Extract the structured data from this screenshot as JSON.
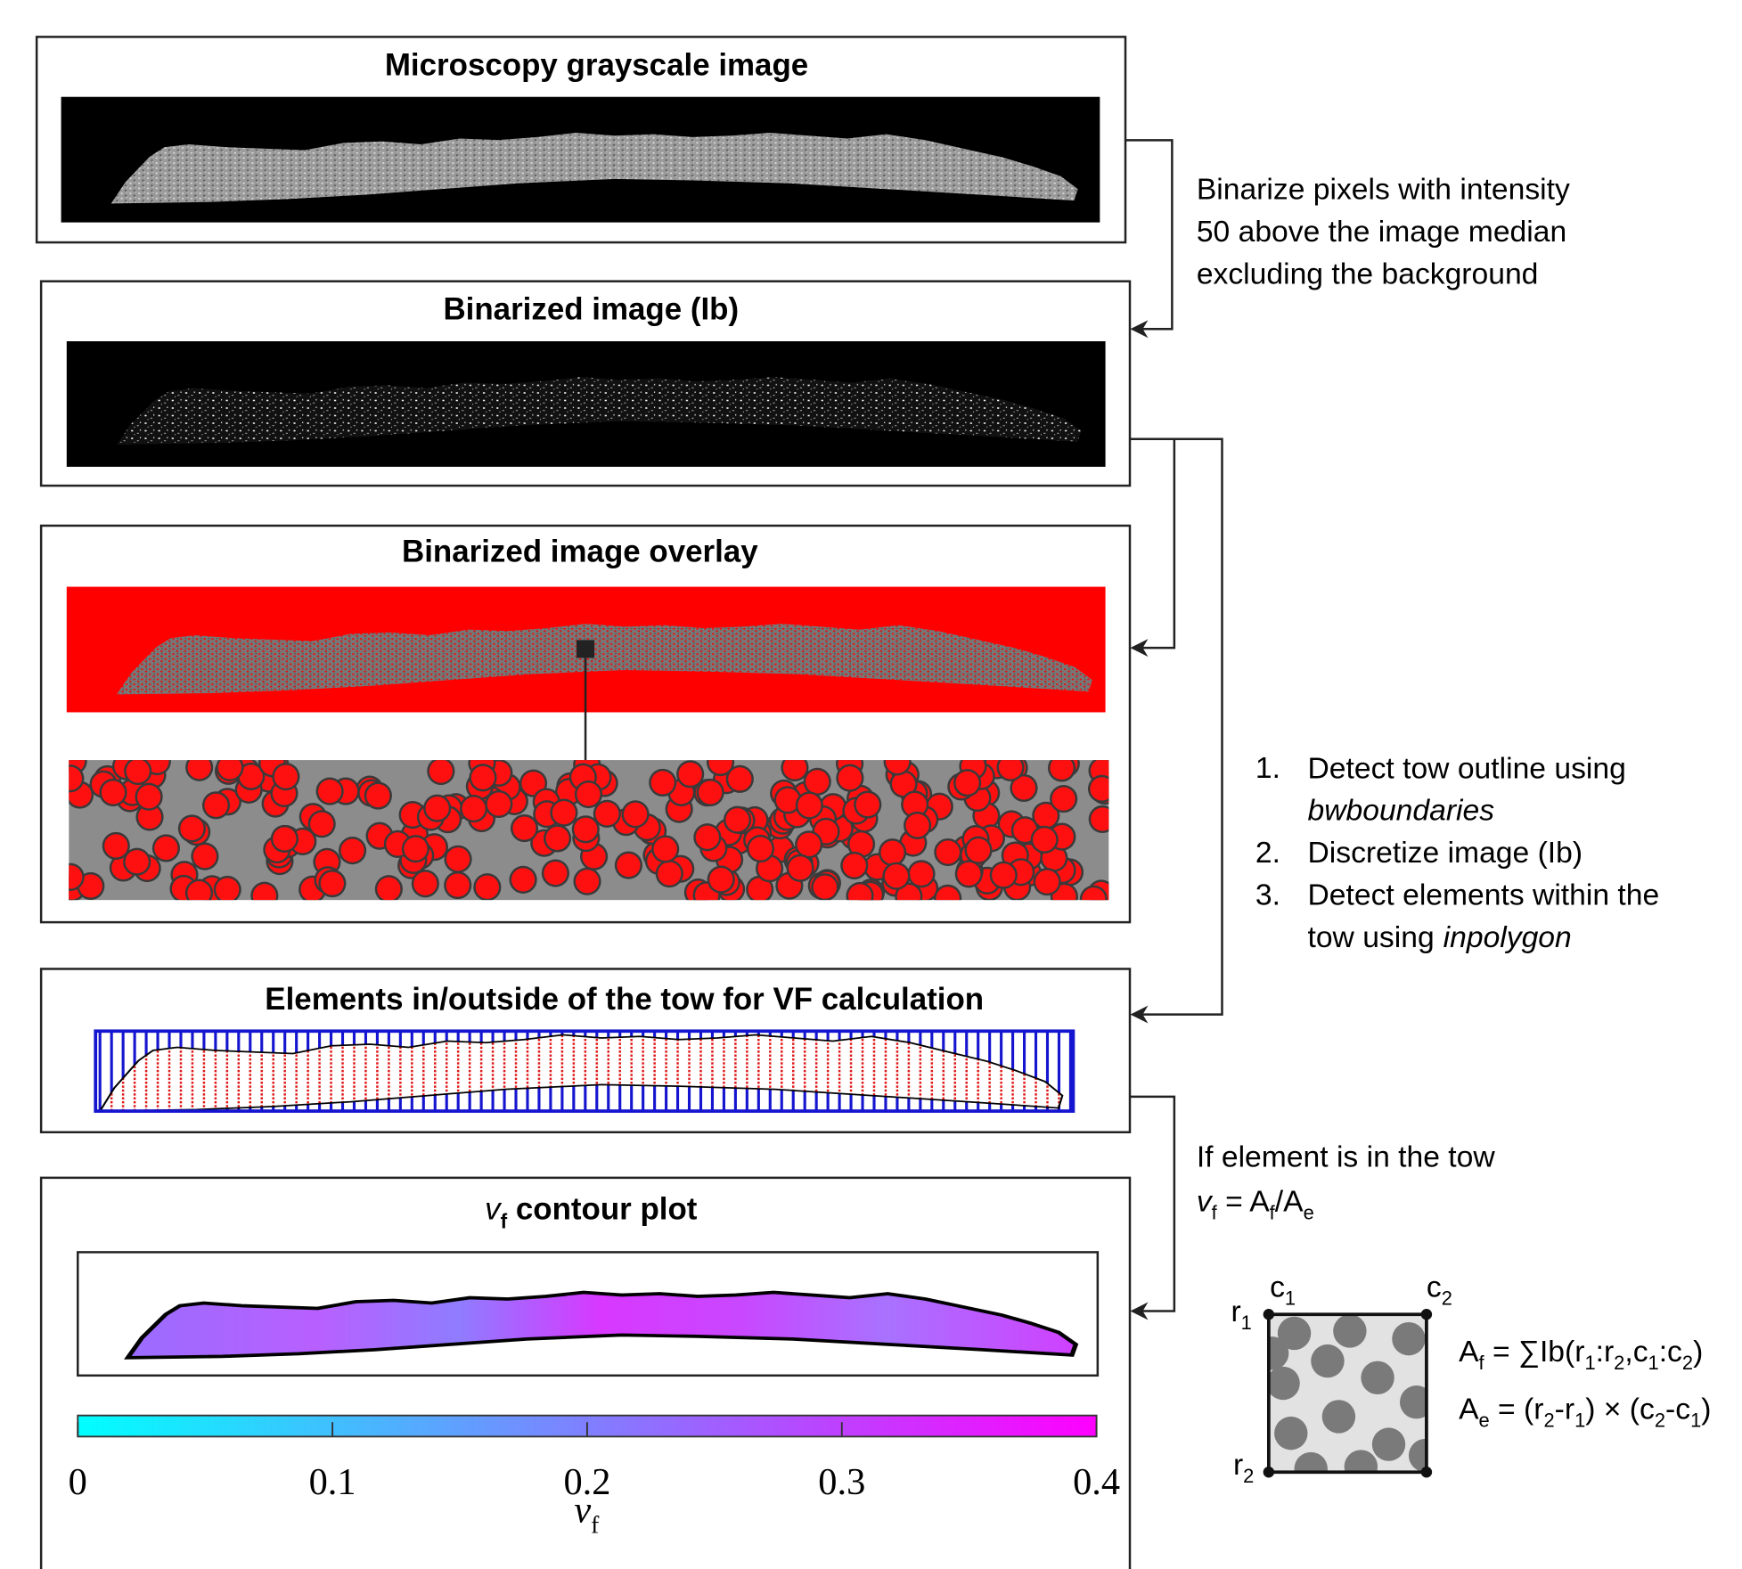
{
  "panels": [
    {
      "title": "Microscopy grayscale image"
    },
    {
      "title": "Binarized image (Ib)"
    },
    {
      "title": "Binarized image overlay"
    },
    {
      "title": "Elements in/outside of the tow for VF calculation"
    },
    {
      "title": [
        "v",
        "f",
        " contour plot"
      ]
    }
  ],
  "binarize_note": [
    "Binarize pixels with intensity",
    "50 above the image median",
    "excluding the background"
  ],
  "steps": [
    {
      "number": "1.",
      "lines": [
        "Detect tow outline using"
      ],
      "emphasis": "bwboundaries"
    },
    {
      "number": "2.",
      "lines": [
        "Discretize image (Ib)"
      ]
    },
    {
      "number": "3.",
      "lines": [
        "Detect elements within the",
        "tow using"
      ],
      "emphasis": "inpolygon"
    }
  ],
  "element_note": {
    "condition": "If element is in the tow",
    "formula": [
      "v",
      "f",
      " = A",
      "f",
      "/A",
      "e"
    ]
  },
  "element_diagram": {
    "c1": [
      "c",
      "1"
    ],
    "c2": [
      "c",
      "2"
    ],
    "r1": [
      "r",
      "1"
    ],
    "r2": [
      "r",
      "2"
    ],
    "area_fiber": [
      "A",
      "f",
      " = ∑Ib(r",
      "1",
      ":r",
      "2",
      ",c",
      "1",
      ":c",
      "2",
      ")"
    ],
    "area_element": [
      "A",
      "e",
      " = (r",
      "2",
      "-r",
      "1",
      ") × (c",
      "2",
      "-c",
      "1",
      ")"
    ]
  },
  "colorbar": {
    "xlim": [
      0,
      0.4
    ],
    "xticks": [
      0,
      0.1,
      0.2,
      0.3,
      0.4
    ],
    "label": [
      "v",
      "f"
    ]
  }
}
